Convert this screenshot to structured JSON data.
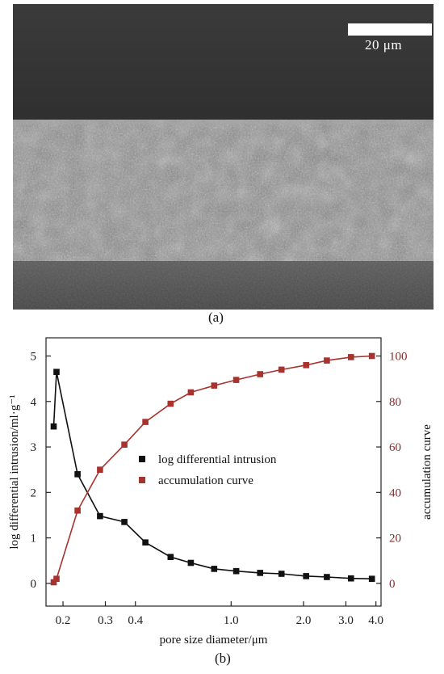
{
  "panel_a": {
    "scale_label": "20 μm",
    "caption": "(a)"
  },
  "panel_b": {
    "caption": "(b)"
  },
  "chart_data": {
    "type": "line",
    "title": "",
    "xlabel": "pore size diameter/μm",
    "ylabel_left": "log differential intrusion/ml·g⁻¹",
    "ylabel_right": "accumulation curve",
    "x_scale": "log",
    "xlim": [
      0.17,
      4.2
    ],
    "x_ticks": [
      0.2,
      0.3,
      0.4,
      1.0,
      2.0,
      3.0,
      4.0
    ],
    "x_tick_labels": [
      "0.2",
      "0.3",
      "0.4",
      "1.0",
      "2.0",
      "3.0",
      "4.0"
    ],
    "ylim_left": [
      -0.5,
      5.4
    ],
    "y_ticks_left": [
      0,
      1,
      2,
      3,
      4,
      5
    ],
    "ylim_right": [
      -10,
      108
    ],
    "y_ticks_right": [
      0,
      20,
      40,
      60,
      80,
      100
    ],
    "grid": false,
    "legend_position": "center",
    "series": [
      {
        "name": "log differential intrusion",
        "axis": "left",
        "color": "#111111",
        "marker": "square",
        "x": [
          0.183,
          0.188,
          0.23,
          0.285,
          0.36,
          0.44,
          0.56,
          0.68,
          0.85,
          1.05,
          1.32,
          1.62,
          2.05,
          2.5,
          3.15,
          3.85
        ],
        "y": [
          3.45,
          4.65,
          2.4,
          1.48,
          1.35,
          0.9,
          0.58,
          0.45,
          0.32,
          0.27,
          0.23,
          0.21,
          0.16,
          0.14,
          0.11,
          0.1
        ]
      },
      {
        "name": "accumulation curve",
        "axis": "right",
        "color": "#a8322d",
        "marker": "square",
        "x": [
          0.183,
          0.188,
          0.23,
          0.285,
          0.36,
          0.44,
          0.56,
          0.68,
          0.85,
          1.05,
          1.32,
          1.62,
          2.05,
          2.5,
          3.15,
          3.85
        ],
        "y": [
          0.5,
          2.0,
          32.0,
          50.0,
          61.0,
          71.0,
          79.0,
          84.0,
          87.0,
          89.5,
          92.0,
          94.0,
          96.0,
          98.0,
          99.5,
          100.0
        ]
      }
    ]
  }
}
